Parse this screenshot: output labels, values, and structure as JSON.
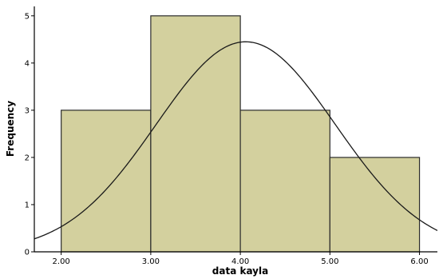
{
  "chart_data": {
    "type": "bar",
    "title": "",
    "xlabel": "data kayla",
    "ylabel": "Frequency",
    "bins": [
      {
        "start": 2.0,
        "end": 3.0,
        "value": 3
      },
      {
        "start": 3.0,
        "end": 4.0,
        "value": 5
      },
      {
        "start": 4.0,
        "end": 5.0,
        "value": 3
      },
      {
        "start": 5.0,
        "end": 6.0,
        "value": 2
      }
    ],
    "x_ticks": [
      {
        "value": 2.0,
        "label": "2.00"
      },
      {
        "value": 3.0,
        "label": "3.00"
      },
      {
        "value": 4.0,
        "label": "4.00"
      },
      {
        "value": 5.0,
        "label": "5.00"
      },
      {
        "value": 6.0,
        "label": "6.00"
      }
    ],
    "y_ticks": [
      {
        "value": 0,
        "label": "0"
      },
      {
        "value": 1,
        "label": "1"
      },
      {
        "value": 2,
        "label": "2"
      },
      {
        "value": 3,
        "label": "3"
      },
      {
        "value": 4,
        "label": "4"
      },
      {
        "value": 5,
        "label": "5"
      }
    ],
    "xlim": [
      1.7,
      6.2
    ],
    "ylim": [
      0,
      5.2
    ],
    "normal_curve": {
      "mean": 4.06,
      "peak": 4.45,
      "sd": 1.0
    },
    "grid": false,
    "colors": {
      "bar_fill": "#d3d09e",
      "bar_stroke": "#2b2b2b",
      "curve": "#1a1a1a",
      "background": "#ffffff"
    }
  }
}
